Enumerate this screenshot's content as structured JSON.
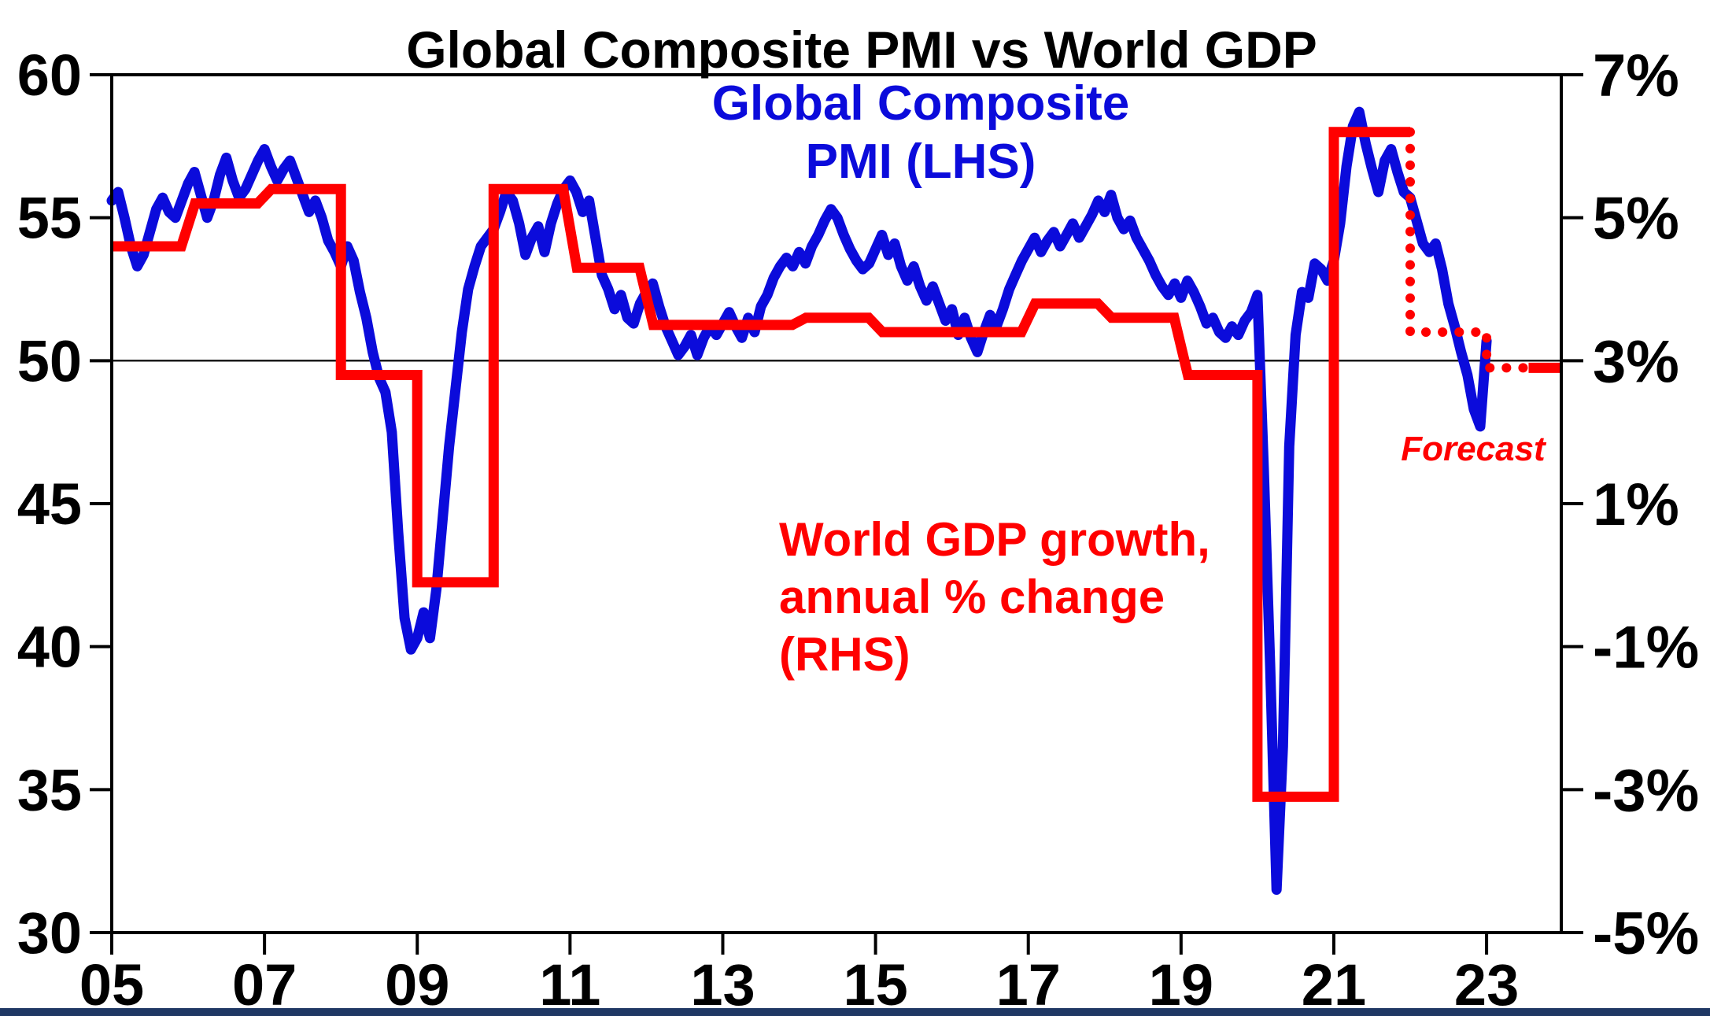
{
  "title": "Global Composite PMI vs World GDP",
  "labels": {
    "pmi_line1": "Global Composite",
    "pmi_line2": "PMI (LHS)",
    "gdp_line1": "World GDP growth,",
    "gdp_line2": "annual % change",
    "gdp_line3": "(RHS)",
    "forecast": "Forecast"
  },
  "colors": {
    "pmi_line": "#0b0bdb",
    "gdp_line": "#ff0000",
    "axis": "#000000",
    "reference_line": "#1a1a1a",
    "bottom_bar": "#1f3864"
  },
  "chart_data": {
    "type": "line",
    "title": "Global Composite PMI vs World GDP",
    "x_axis": {
      "tick_labels": [
        "05",
        "07",
        "09",
        "11",
        "13",
        "15",
        "17",
        "19",
        "21",
        "23"
      ],
      "tick_years": [
        2005,
        2007,
        2009,
        2011,
        2013,
        2015,
        2017,
        2019,
        2021,
        2023
      ],
      "range_years": [
        2005,
        2024
      ]
    },
    "left_axis": {
      "ticks": [
        60,
        55,
        50,
        45,
        40,
        35,
        30
      ],
      "range": [
        30,
        60
      ],
      "series": "Global Composite PMI"
    },
    "right_axis": {
      "tick_labels": [
        "7%",
        "5%",
        "3%",
        "1%",
        "-1%",
        "-3%",
        "-5%"
      ],
      "tick_values": [
        7,
        5,
        3,
        1,
        -1,
        -3,
        -5
      ],
      "range": [
        -5,
        7
      ],
      "series": "World GDP growth, annual % change"
    },
    "reference_line": {
      "pmi": 50,
      "gdp_pct": 3
    },
    "series": [
      {
        "name": "Global Composite PMI (LHS)",
        "axis": "left",
        "frequency": "monthly",
        "monthly": {
          "2005": [
            55.6,
            55.9,
            55.0,
            54.0,
            53.3,
            53.7,
            54.5,
            55.3,
            55.7,
            55.2,
            55.0,
            55.6
          ],
          "2006": [
            56.2,
            56.6,
            55.8,
            55.0,
            55.6,
            56.5,
            57.1,
            56.3,
            55.7,
            56.0,
            56.5,
            57.0
          ],
          "2007": [
            57.4,
            56.8,
            56.3,
            56.7,
            57.0,
            56.4,
            55.8,
            55.2,
            55.6,
            55.0,
            54.2,
            53.8
          ],
          "2008": [
            53.3,
            54.0,
            53.5,
            52.4,
            51.5,
            50.3,
            49.4,
            48.9,
            47.5,
            44.0,
            41.0,
            39.9
          ],
          "2009": [
            40.3,
            41.2,
            40.3,
            42.0,
            44.5,
            47.0,
            49.0,
            51.0,
            52.5,
            53.3,
            54.0,
            54.3
          ],
          "2010": [
            54.6,
            55.2,
            55.9,
            55.6,
            54.8,
            53.7,
            54.3,
            54.7,
            53.8,
            54.8,
            55.5,
            56.0
          ],
          "2011": [
            56.3,
            55.9,
            55.2,
            55.6,
            54.3,
            53.0,
            52.5,
            51.8,
            52.3,
            51.5,
            51.3,
            52.0
          ],
          "2012": [
            52.4,
            52.7,
            51.9,
            51.2,
            50.7,
            50.2,
            50.5,
            50.9,
            50.2,
            50.8,
            51.2,
            50.9
          ],
          "2013": [
            51.3,
            51.7,
            51.2,
            50.8,
            51.5,
            51.0,
            51.9,
            52.3,
            52.9,
            53.3,
            53.6,
            53.3
          ],
          "2014": [
            53.8,
            53.4,
            54.0,
            54.4,
            54.9,
            55.3,
            55.0,
            54.4,
            53.9,
            53.5,
            53.2,
            53.4
          ],
          "2015": [
            53.9,
            54.4,
            53.7,
            54.1,
            53.3,
            52.8,
            53.3,
            52.6,
            52.1,
            52.6,
            52.0,
            51.4
          ],
          "2016": [
            51.8,
            50.9,
            51.5,
            50.8,
            50.3,
            51.0,
            51.6,
            51.2,
            51.8,
            52.5,
            53.0,
            53.5
          ],
          "2017": [
            53.9,
            54.3,
            53.8,
            54.2,
            54.5,
            54.0,
            54.4,
            54.8,
            54.3,
            54.7,
            55.1,
            55.6
          ],
          "2018": [
            55.2,
            55.8,
            55.0,
            54.6,
            54.9,
            54.3,
            53.9,
            53.5,
            53.0,
            52.6,
            52.3,
            52.7
          ],
          "2019": [
            52.2,
            52.8,
            52.4,
            51.9,
            51.3,
            51.5,
            51.0,
            50.8,
            51.2,
            50.9,
            51.4,
            51.7
          ],
          "2020": [
            52.3,
            46.2,
            39.3,
            31.5,
            36.5,
            47.0,
            50.9,
            52.4,
            52.2,
            53.4,
            53.2,
            52.8
          ],
          "2021": [
            53.5,
            54.8,
            56.8,
            58.2,
            58.7,
            57.6,
            56.7,
            55.9,
            57.0,
            57.4,
            56.6,
            55.9
          ],
          "2022": [
            55.7,
            54.9,
            54.1,
            53.8,
            54.1,
            53.2,
            52.0,
            51.2,
            50.3,
            49.5,
            48.3,
            47.7
          ],
          "2023": [
            50.7
          ]
        }
      },
      {
        "name": "World GDP growth, annual % change (RHS)",
        "axis": "right",
        "frequency": "annual",
        "annual": {
          "2005": 4.6,
          "2006": 5.2,
          "2007": 5.4,
          "2008": 2.8,
          "2009": -0.1,
          "2010": 5.4,
          "2011": 4.3,
          "2012": 3.5,
          "2013": 3.5,
          "2014": 3.6,
          "2015": 3.4,
          "2016": 3.4,
          "2017": 3.8,
          "2018": 3.6,
          "2019": 2.8,
          "2020": -3.1,
          "2021": 6.2
        },
        "forecast": {
          "2022": 3.4,
          "2023": 2.9
        }
      }
    ]
  }
}
